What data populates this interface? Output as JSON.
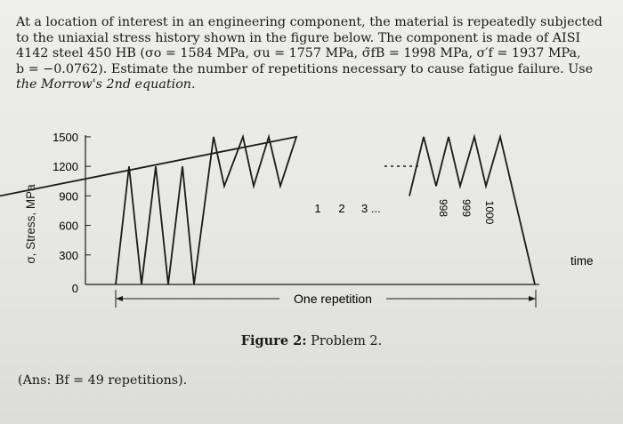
{
  "problem": {
    "line1": "At a location of interest in an engineering component, the material is repeatedly subjected",
    "line2": "to the uniaxial stress history shown in the figure below.  The component is made of AISI",
    "line3": "4142 steel 450 HB (σo = 1584 MPa, σu = 1757 MPa, σ̃fB = 1998 MPa, σ′f = 1937 MPa,",
    "line4": "b = −0.0762).  Estimate the number of repetitions necessary to cause fatigue failure.  Use",
    "line5": "the Morrow's 2nd equation."
  },
  "chart_data": {
    "type": "line",
    "ylabel": "σ, Stress, MPa",
    "xlabel": "time",
    "yticks": [
      0,
      300,
      600,
      900,
      1200,
      1500
    ],
    "ylim": [
      0,
      1500
    ],
    "segments": [
      {
        "x": [
          0,
          1,
          2,
          3,
          4,
          5,
          6
        ],
        "y": [
          0,
          1200,
          0,
          1200,
          0,
          1200,
          0
        ]
      },
      {
        "x": [
          6,
          7,
          8,
          9,
          10,
          11,
          12,
          13,
          14
        ],
        "y": [
          0,
          1500,
          1000,
          1500,
          1000,
          1500,
          1000,
          1500,
          900
        ]
      },
      {
        "x": [
          18,
          19,
          20,
          21,
          22,
          23,
          24,
          25,
          26
        ],
        "y": [
          900,
          1500,
          1000,
          1500,
          1000,
          1500,
          1000,
          1500,
          0
        ]
      }
    ],
    "cycle_labels": [
      "1",
      "2",
      "3 ..."
    ],
    "late_cycle_labels": [
      "998",
      "999",
      "1000"
    ],
    "repetition_label": "One repetition"
  },
  "caption": {
    "label": "Figure 2:",
    "text": "Problem 2."
  },
  "answer": {
    "text": "(Ans: Bf = 49 repetitions)."
  }
}
